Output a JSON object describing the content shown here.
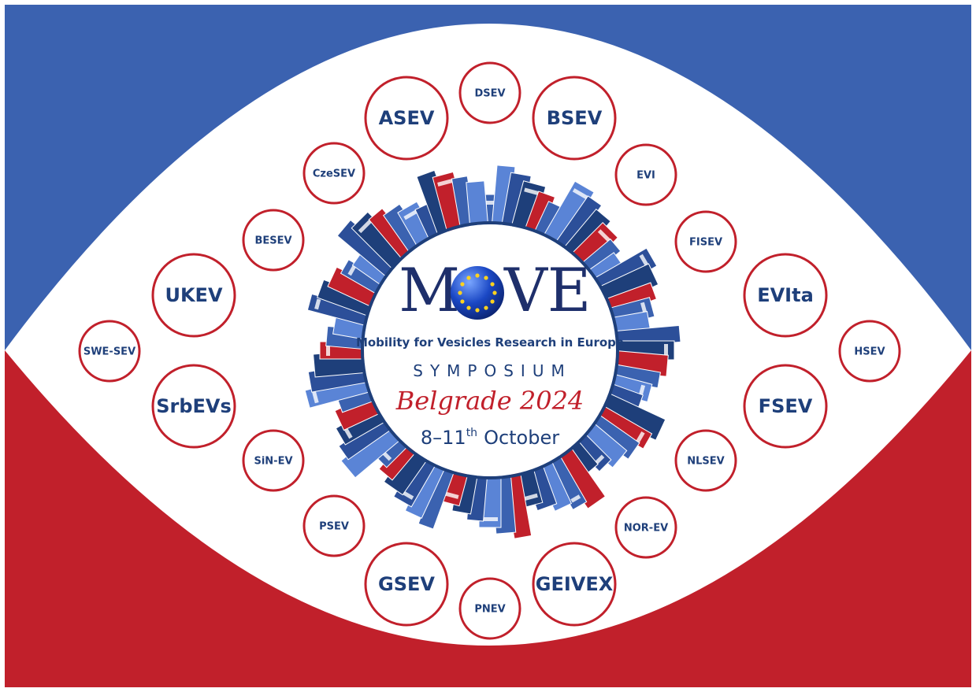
{
  "societies": [
    "DSEV",
    "ASEV",
    "BSEV",
    "CzeSEV",
    "EVI",
    "BESEV",
    "FISEV",
    "UKEV",
    "EVIta",
    "SWE-SEV",
    "HSEV",
    "SrbEVs",
    "FSEV",
    "SiN-EV",
    "NLSEV",
    "PSEV",
    "NOR-EV",
    "GSEV",
    "GEIVEX",
    "PNEV"
  ],
  "center": {
    "logo": {
      "left": "M",
      "right": "VE"
    },
    "subtitle": "Mobility for Vesicles Research in Europe",
    "event": "SYMPOSIUM",
    "place": "Belgrade 2024",
    "date": {
      "days": "8–11",
      "suffix": "th",
      "month": "October"
    }
  }
}
